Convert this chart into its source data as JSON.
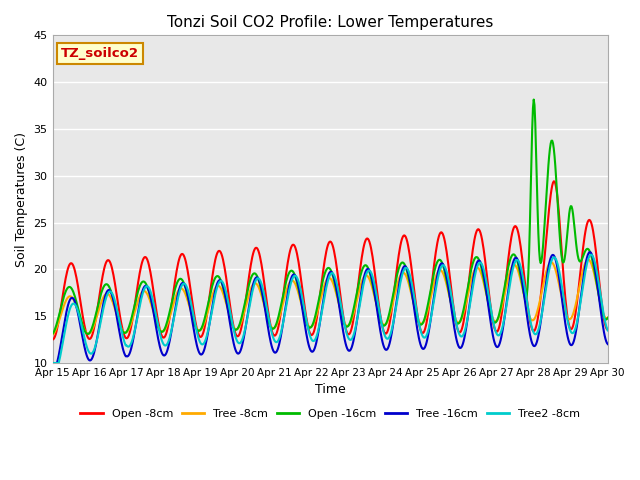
{
  "title": "Tonzi Soil CO2 Profile: Lower Temperatures",
  "xlabel": "Time",
  "ylabel": "Soil Temperatures (C)",
  "annotation": "TZ_soilco2",
  "ylim": [
    10,
    45
  ],
  "yticks": [
    10,
    15,
    20,
    25,
    30,
    35,
    40,
    45
  ],
  "legend_entries": [
    "Open -8cm",
    "Tree -8cm",
    "Open -16cm",
    "Tree -16cm",
    "Tree2 -8cm"
  ],
  "line_colors": [
    "#ff0000",
    "#ffaa00",
    "#00bb00",
    "#0000cc",
    "#00cccc"
  ],
  "line_widths": [
    1.5,
    1.5,
    1.5,
    1.5,
    1.5
  ],
  "background_color": "#ffffff",
  "plot_bg_color": "#e8e8e8",
  "grid_color": "#ffffff",
  "annotation_bg": "#ffffcc",
  "annotation_border": "#cc8800",
  "n_days": 15,
  "pts_per_day": 48
}
